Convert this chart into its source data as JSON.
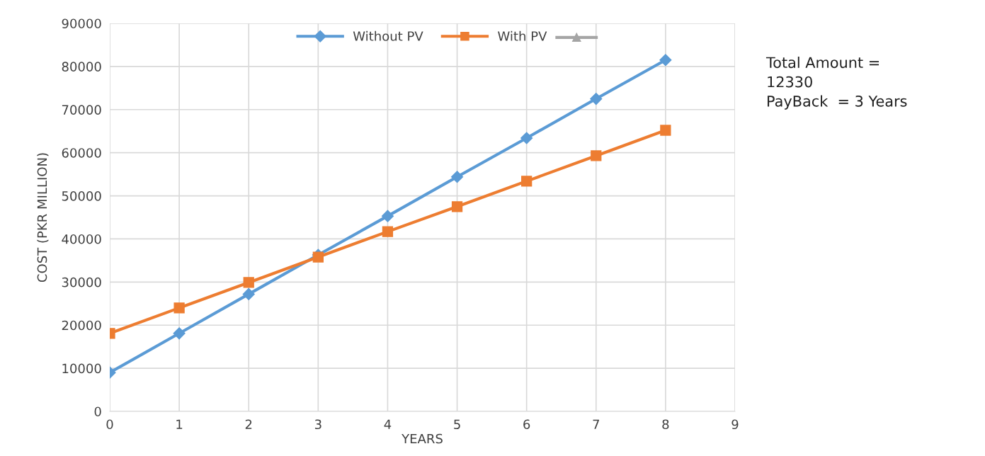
{
  "chart_data": {
    "type": "line",
    "xlabel": "YEARS",
    "ylabel": "COST (PKR MILLION)",
    "x": [
      0,
      1,
      2,
      3,
      4,
      5,
      6,
      7,
      8
    ],
    "series": [
      {
        "name": "Without PV",
        "color": "#5b9bd5",
        "marker": "diamond",
        "values": [
          9000,
          18100,
          27200,
          36300,
          45300,
          54400,
          63400,
          72500,
          81500
        ]
      },
      {
        "name": "With PV",
        "color": "#ed7d31",
        "marker": "square",
        "values": [
          18100,
          24000,
          29900,
          35800,
          41700,
          47500,
          53400,
          59300,
          65200
        ]
      },
      {
        "color": "#a5a5a5",
        "marker": "triangle",
        "values": [
          null,
          null,
          null,
          null,
          null,
          null,
          null,
          null,
          null
        ]
      }
    ],
    "xlim": [
      0,
      9
    ],
    "xticks": [
      0,
      1,
      2,
      3,
      4,
      5,
      6,
      7,
      8,
      9
    ],
    "ylim": [
      0,
      90000
    ],
    "yticks": [
      0,
      10000,
      20000,
      30000,
      40000,
      50000,
      60000,
      70000,
      80000,
      90000
    ],
    "grid": true,
    "legend": "top",
    "annotations": [
      "Total Amount =\n12330\nPayBack  = 3 Years"
    ]
  }
}
